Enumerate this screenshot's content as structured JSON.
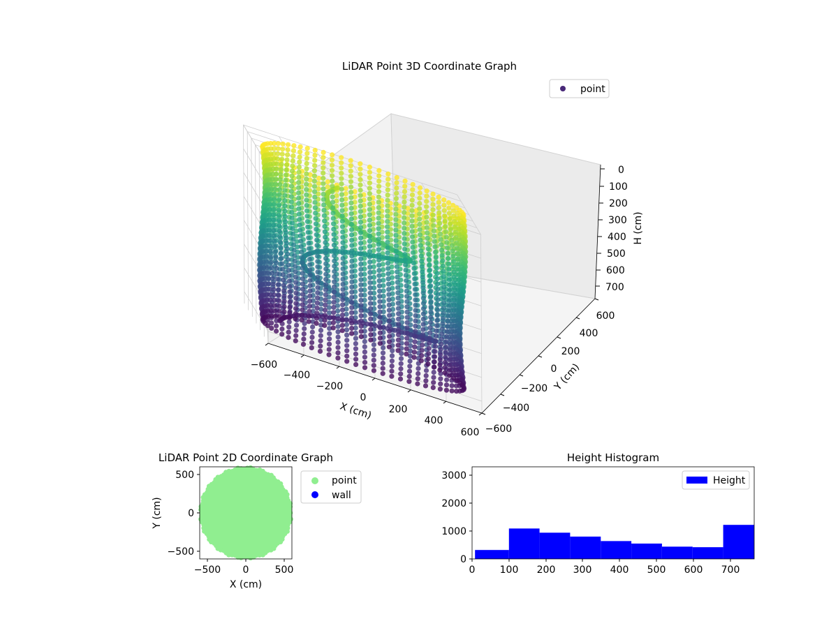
{
  "chart_data": [
    {
      "type": "scatter",
      "projection": "3d",
      "title": "LiDAR Point 3D Coordinate Graph",
      "xlabel": "X (cm)",
      "ylabel": "Y (cm)",
      "zlabel": "H (cm)",
      "xlim": [
        -600,
        600
      ],
      "ylim": [
        -600,
        600
      ],
      "zlim": [
        750,
        0
      ],
      "xticks": [
        -600,
        -400,
        -200,
        0,
        200,
        400,
        600
      ],
      "yticks": [
        -600,
        -400,
        -200,
        0,
        200,
        400,
        600
      ],
      "zticks": [
        0,
        100,
        200,
        300,
        400,
        500,
        600,
        700
      ],
      "xtick_labels": [
        "−600",
        "−400",
        "−200",
        "0",
        "200",
        "400",
        "600"
      ],
      "ytick_labels": [
        "−600",
        "−400",
        "−200",
        "0",
        "200",
        "400",
        "600"
      ],
      "ztick_labels": [
        "0",
        "100",
        "200",
        "300",
        "400",
        "500",
        "600",
        "700"
      ],
      "colormap": "viridis",
      "legend": {
        "placement": "top-right",
        "entries": [
          "point"
        ]
      },
      "grid": true,
      "series": [
        {
          "name": "point",
          "color": "#482878",
          "shape": "cylindrical wall",
          "radius": 560,
          "h_range": [
            0,
            730
          ],
          "inner_structure": "spiral stair",
          "samples": [
            {
              "x": 560,
              "y": 0,
              "h": 0
            },
            {
              "x": 560,
              "y": 0,
              "h": 730
            },
            {
              "x": 0,
              "y": 560,
              "h": 0
            },
            {
              "x": 0,
              "y": 560,
              "h": 730
            },
            {
              "x": -560,
              "y": 0,
              "h": 0
            },
            {
              "x": -560,
              "y": 0,
              "h": 730
            },
            {
              "x": 0,
              "y": -560,
              "h": 0
            },
            {
              "x": 0,
              "y": -560,
              "h": 730
            }
          ]
        }
      ]
    },
    {
      "type": "scatter",
      "title": "LiDAR Point 2D Coordinate Graph",
      "xlabel": "X (cm)",
      "ylabel": "Y (cm)",
      "xlim": [
        -600,
        600
      ],
      "ylim": [
        -600,
        600
      ],
      "xticks": [
        -500,
        0,
        500
      ],
      "yticks": [
        -500,
        0,
        500
      ],
      "xtick_labels": [
        "−500",
        "0",
        "500"
      ],
      "ytick_labels": [
        "−500",
        "0",
        "500"
      ],
      "legend": {
        "placement": "outside-right",
        "entries": [
          "point",
          "wall"
        ]
      },
      "series": [
        {
          "name": "point",
          "color": "#90ee90",
          "shape": "filled disk",
          "radius": 580
        },
        {
          "name": "wall",
          "color": "#0000ff",
          "values": []
        }
      ]
    },
    {
      "type": "bar",
      "subtype": "histogram",
      "title": "Height Histogram",
      "xlim": [
        0,
        765
      ],
      "ylim": [
        0,
        3300
      ],
      "xticks": [
        0,
        100,
        200,
        300,
        400,
        500,
        600,
        700
      ],
      "yticks": [
        0,
        1000,
        2000,
        3000
      ],
      "legend": {
        "placement": "top-right",
        "entries": [
          "Height"
        ]
      },
      "series": [
        {
          "name": "Height",
          "color": "#0000ff",
          "bin_edges": [
            8,
            100,
            183,
            266,
            349,
            432,
            515,
            598,
            681,
            765
          ],
          "values": [
            320,
            1090,
            940,
            800,
            640,
            550,
            440,
            420,
            1220
          ]
        }
      ]
    }
  ]
}
